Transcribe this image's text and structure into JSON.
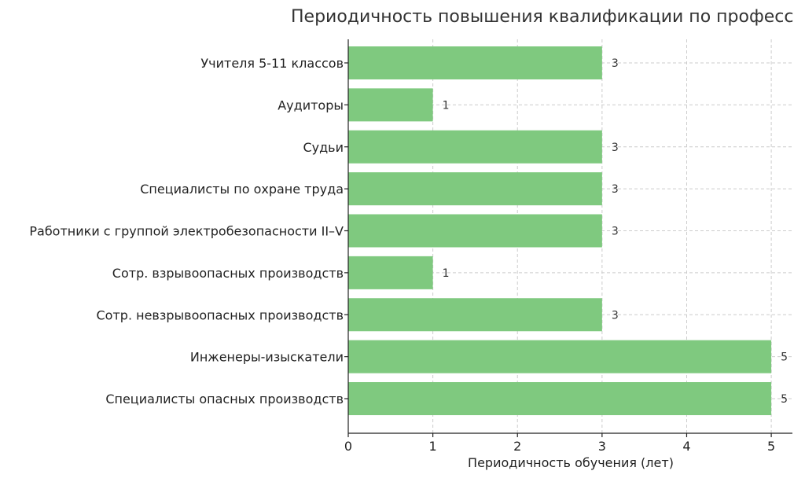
{
  "chart_data": {
    "type": "bar",
    "orientation": "horizontal",
    "title": "Периодичность повышения квалификации по професс",
    "xlabel": "Периодичность обучения (лет)",
    "ylabel": "",
    "xlim": [
      0,
      5.25
    ],
    "xticks": [
      0,
      1,
      2,
      3,
      4,
      5
    ],
    "grid": true,
    "bar_color": "#7fc97f",
    "categories": [
      "Учителя 5-11 классов",
      "Аудиторы",
      "Судьи",
      "Специалисты по охране труда",
      "Работники с группой электробезопасности II–V",
      "Сотр. взрывоопасных производств",
      "Сотр. невзрывоопасных производств",
      "Инженеры-изыскатели",
      "Специалисты опасных производств"
    ],
    "values": [
      3,
      1,
      3,
      3,
      3,
      1,
      3,
      5,
      5
    ]
  }
}
